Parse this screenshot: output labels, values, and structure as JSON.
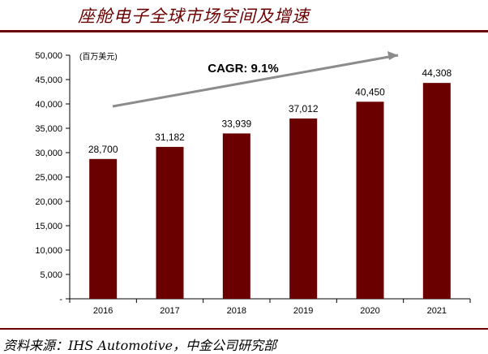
{
  "page": {
    "title": "座舱电子全球市场空间及增速",
    "source": "资料来源：IHS Automotive，中金公司研究部"
  },
  "colors": {
    "bar": "#6b0000",
    "accent": "#6b0000",
    "arrow": "#8c8c8c"
  },
  "chart_data": {
    "type": "bar",
    "categories": [
      "2016",
      "2017",
      "2018",
      "2019",
      "2020",
      "2021"
    ],
    "values": [
      28700,
      31182,
      33939,
      37012,
      40450,
      44308
    ],
    "data_labels": [
      "28,700",
      "31,182",
      "33,939",
      "37,012",
      "40,450",
      "44,308"
    ],
    "ylim": [
      0,
      50000
    ],
    "yticks": [
      0,
      5000,
      10000,
      15000,
      20000,
      25000,
      30000,
      35000,
      40000,
      45000,
      50000
    ],
    "ytick_labels": [
      "-",
      "5,000",
      "10,000",
      "15,000",
      "20,000",
      "25,000",
      "30,000",
      "35,000",
      "40,000",
      "45,000",
      "50,000"
    ],
    "unit_label": "(百万美元)",
    "annotation": "CAGR: 9.1%",
    "grid": false,
    "legend": "none"
  }
}
